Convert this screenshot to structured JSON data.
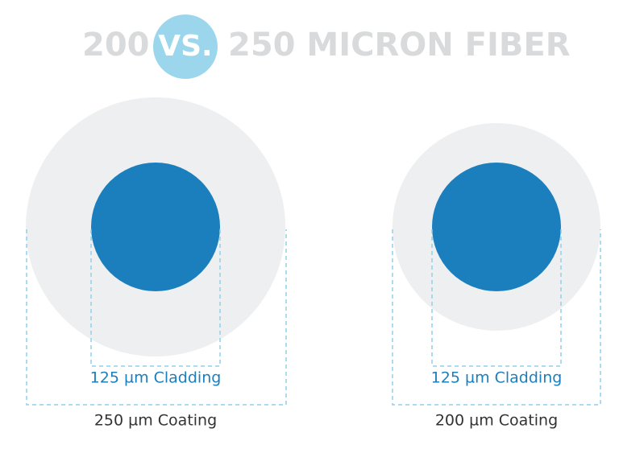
{
  "title": {
    "left": "200",
    "badge": "VS.",
    "right": "250 MICRON FIBER"
  },
  "fibers": [
    {
      "cladding": "125 µm Cladding",
      "coating": "250 µm Coating"
    },
    {
      "cladding": "125 µm Cladding",
      "coating": "200 µm Coating"
    }
  ]
}
